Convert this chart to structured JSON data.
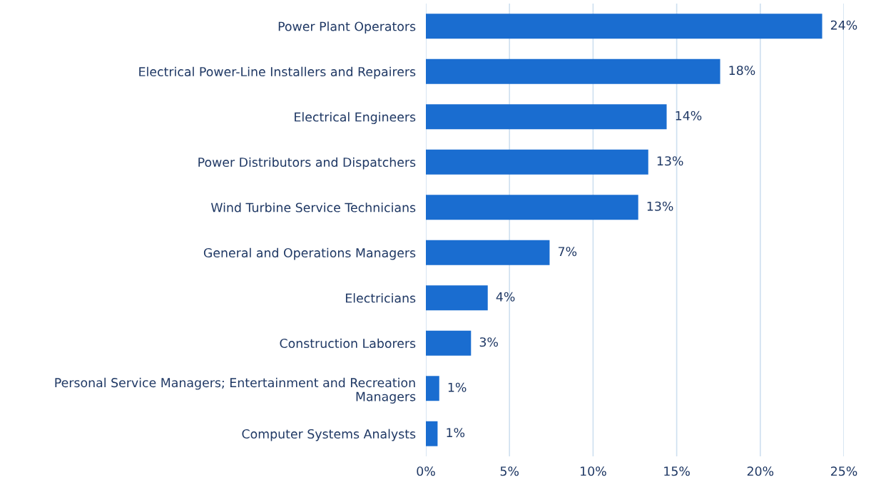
{
  "chart_data": {
    "type": "bar",
    "orientation": "horizontal",
    "categories": [
      "Power Plant Operators",
      "Electrical Power-Line Installers and Repairers",
      "Electrical Engineers",
      "Power Distributors and Dispatchers",
      "Wind Turbine Service Technicians",
      "General and Operations Managers",
      "Electricians",
      "Construction Laborers",
      "Personal Service Managers; Entertainment and Recreation\nManagers",
      "Computer Systems Analysts"
    ],
    "values": [
      23.7,
      17.6,
      14.4,
      13.3,
      12.7,
      7.4,
      3.7,
      2.7,
      0.8,
      0.7
    ],
    "value_labels": [
      "24%",
      "18%",
      "14%",
      "13%",
      "13%",
      "7%",
      "4%",
      "3%",
      "1%",
      "1%"
    ],
    "color": "#1a6dd0",
    "xlim": [
      0,
      25
    ],
    "xticks": [
      {
        "value": 0,
        "label": "0%"
      },
      {
        "value": 5,
        "label": "5%"
      },
      {
        "value": 10,
        "label": "10%"
      },
      {
        "value": 15,
        "label": "15%"
      },
      {
        "value": 20,
        "label": "20%"
      },
      {
        "value": 25,
        "label": "25%"
      }
    ],
    "grid": "x"
  }
}
